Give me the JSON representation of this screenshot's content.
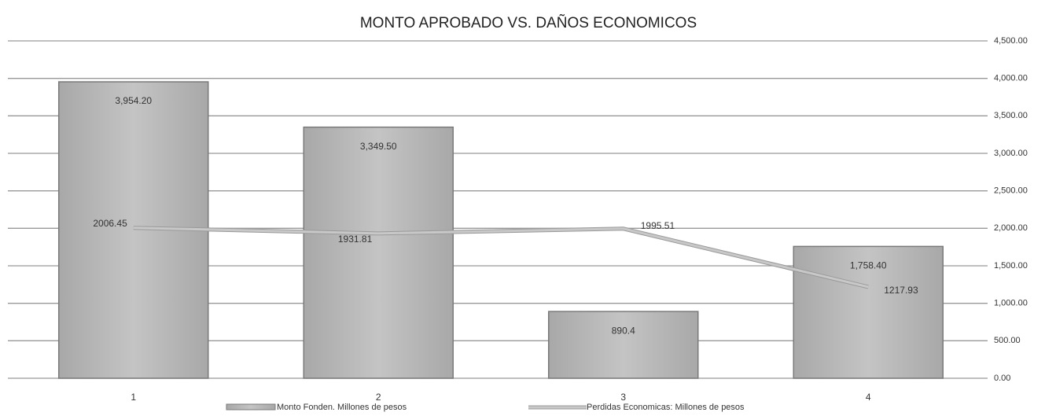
{
  "chart_data": {
    "type": "bar",
    "title": "MONTO  APROBADO  VS.  DAÑOS  ECONOMICOS",
    "categories": [
      "1",
      "2",
      "3",
      "4"
    ],
    "series": [
      {
        "name": "Monto Fonden. Millones de pesos",
        "type": "bar",
        "color": "#b4b4b4",
        "values": [
          3954.2,
          3349.5,
          890.4,
          1758.4
        ],
        "value_labels": [
          "3,954.20",
          "3,349.50",
          "890.4",
          "1,758.40"
        ]
      },
      {
        "name": "Perdidas Economicas: Millones de pesos",
        "type": "line",
        "color": "#c8c8c8",
        "values": [
          2006.45,
          1931.81,
          1995.51,
          1217.93
        ]
      }
    ],
    "ylim": [
      0,
      4500
    ],
    "yticks": [
      {
        "value": 0,
        "label": "0.00"
      },
      {
        "value": 500,
        "label": "500.00"
      },
      {
        "value": 1000,
        "label": "1,000.00"
      },
      {
        "value": 1500,
        "label": "1,500.00"
      },
      {
        "value": 2000,
        "label": "2,000.00"
      },
      {
        "value": 2500,
        "label": "2,500.00"
      },
      {
        "value": 3000,
        "label": "3,000.00"
      },
      {
        "value": 3500,
        "label": "3,500.00"
      },
      {
        "value": 4000,
        "label": "4,000.00"
      },
      {
        "value": 4500,
        "label": "4,500.00"
      }
    ],
    "axis_side": "right",
    "grid": true
  }
}
